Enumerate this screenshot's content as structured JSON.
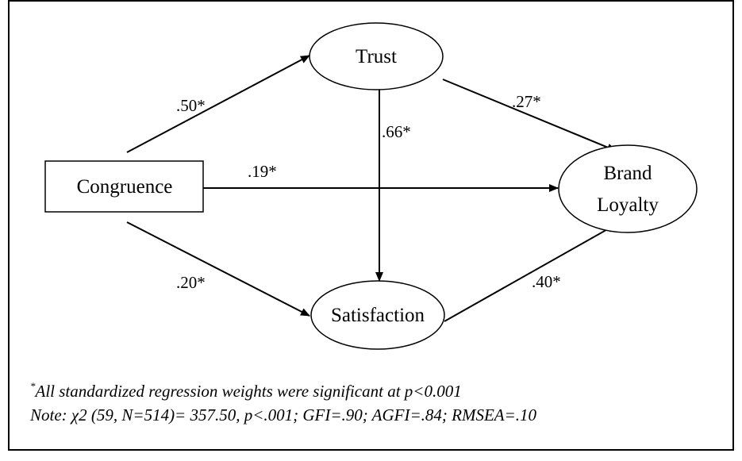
{
  "nodes": [
    {
      "label": "Congruence"
    },
    {
      "label": "Trust"
    },
    {
      "label": "Satisfaction"
    },
    {
      "lines": [
        "Brand",
        "Loyalty"
      ]
    }
  ],
  "edges": [
    {
      "label": ".50*"
    },
    {
      "label": ".27*"
    },
    {
      "label": ".66*"
    },
    {
      "label": ".19*"
    },
    {
      "label": ".20*"
    },
    {
      "label": ".40*"
    }
  ],
  "notes": {
    "marker": "*",
    "significance": "All standardized regression weights were significant at p<0.001",
    "fit": "Note: χ2 (59, N=514)= 357.50, p<.001; GFI=.90; AGFI=.84; RMSEA=.10"
  }
}
